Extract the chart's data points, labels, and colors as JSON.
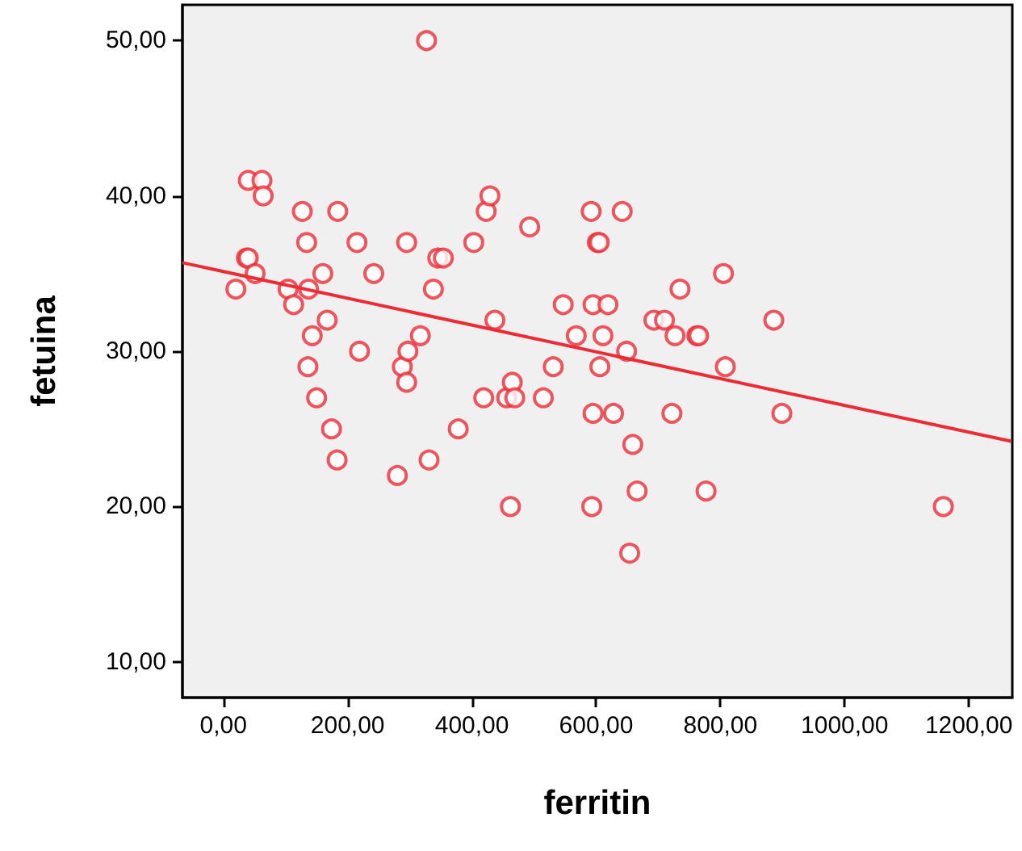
{
  "chart_data": {
    "type": "scatter",
    "xlabel": "ferritin",
    "ylabel": "fetuina",
    "marker": "circle",
    "grid": false,
    "xlim": [
      -66,
      1270
    ],
    "ylim": [
      7.7,
      52.3
    ],
    "xticks": [
      {
        "value": 0,
        "label": "0,00"
      },
      {
        "value": 200,
        "label": "200,00"
      },
      {
        "value": 400,
        "label": "400,00"
      },
      {
        "value": 600,
        "label": "600,00"
      },
      {
        "value": 800,
        "label": "800,00"
      },
      {
        "value": 1000,
        "label": "1000,00"
      },
      {
        "value": 1200,
        "label": "1200,00"
      }
    ],
    "yticks": [
      {
        "value": 10,
        "label": "10,00"
      },
      {
        "value": 20,
        "label": "20,00"
      },
      {
        "value": 30,
        "label": "30,00"
      },
      {
        "value": 40,
        "label": "40,00"
      },
      {
        "value": 50,
        "label": "50,00"
      }
    ],
    "series": [
      {
        "color": "#ee2a35",
        "x": [
          327,
          40,
          62,
          64,
          127,
          184,
          134,
          215,
          295,
          37,
          40,
          51,
          160,
          242,
          20,
          104,
          137,
          113,
          167,
          143,
          219,
          136,
          150,
          174,
          183,
          280,
          288,
          297,
          317,
          295,
          331,
          338,
          345,
          354,
          378,
          403,
          423,
          429,
          437,
          493,
          419,
          456,
          465,
          469,
          462,
          515,
          531,
          547,
          568,
          592,
          642,
          602,
          605,
          595,
          619,
          611,
          649,
          606,
          595,
          628,
          722,
          899,
          659,
          666,
          777,
          593,
          654,
          1159,
          805,
          735,
          693,
          710,
          727,
          762,
          765,
          886,
          808
        ],
        "values": [
          50,
          41,
          41,
          40,
          39,
          39,
          37,
          37,
          37,
          36,
          36,
          35,
          35,
          35,
          34,
          34,
          34,
          33,
          32,
          31,
          30,
          29,
          27,
          25,
          23,
          22,
          29,
          30,
          31,
          28,
          23,
          34,
          36,
          36,
          25,
          37,
          39,
          40,
          32,
          38,
          27,
          27,
          28,
          27,
          20,
          27,
          29,
          33,
          31,
          39,
          39,
          37,
          37,
          33,
          33,
          31,
          30,
          29,
          26,
          26,
          26,
          26,
          24,
          21,
          21,
          20,
          17,
          20,
          35,
          34,
          32,
          32,
          31,
          31,
          31,
          32,
          29
        ]
      },
      {
        "type": "line",
        "color": "#ee2a35",
        "marker": "none",
        "x": [
          -66,
          1268
        ],
        "values": [
          35.7,
          24.2
        ]
      }
    ]
  }
}
